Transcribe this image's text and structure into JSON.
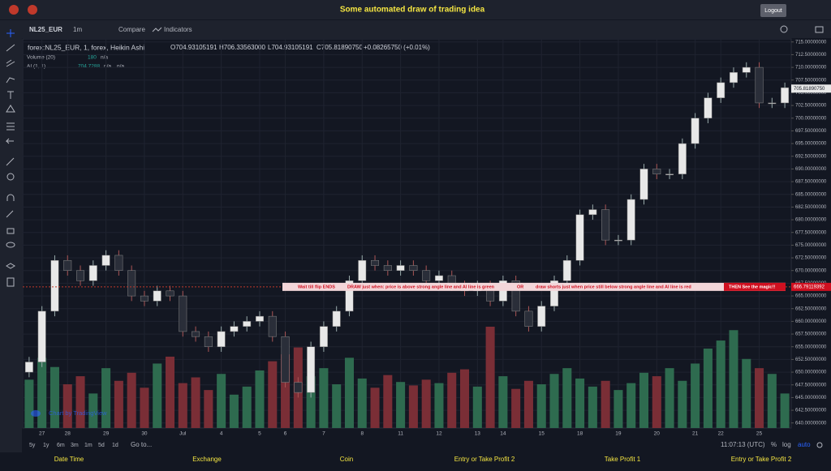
{
  "header": {
    "title": "Some automated draw of trading idea",
    "logout": "Logout"
  },
  "toolbar": {
    "symbol": "NL25_EUR",
    "interval": "1m",
    "compare": "Compare",
    "indicators": "Indicators"
  },
  "legend": {
    "main": "forex:NL25_EUR, 1, forex, Heikin Ashi",
    "open": "O704.93105191",
    "high": "H706.33563000",
    "low": "L704.93105191",
    "close": "C705.81890750",
    "change": "+0.08265750 (+0.01%)",
    "volume_name": "Volume (20)",
    "volume_value": "180",
    "volume_na": "n/a",
    "ai_name": "AI (1, 1)",
    "ai_value": "704.7288",
    "ai_na1": "n/a",
    "ai_na2": "n/a"
  },
  "chart_data": {
    "type": "candlestick",
    "categories": [
      null,
      "27",
      null,
      "28",
      null,
      null,
      "29",
      null,
      null,
      "30",
      null,
      null,
      "Jul",
      null,
      null,
      "4",
      null,
      null,
      "5",
      null,
      "6",
      null,
      null,
      "7",
      null,
      null,
      "8",
      null,
      null,
      "11",
      null,
      null,
      "12",
      null,
      null,
      "13",
      null,
      "14",
      null,
      null,
      "15",
      null,
      null,
      "18",
      null,
      null,
      "19",
      null,
      null,
      "20",
      null,
      null,
      "21",
      null,
      "22",
      null,
      null,
      "25",
      null,
      null
    ],
    "open": [
      650,
      652,
      662,
      672,
      670,
      668,
      671,
      673,
      670,
      665,
      664,
      666,
      665,
      658,
      657,
      655,
      658,
      659,
      660,
      661,
      657,
      648,
      646,
      655,
      659,
      662,
      668,
      672,
      671,
      670,
      671,
      670,
      668,
      669,
      667,
      666,
      667,
      664,
      668,
      662,
      659,
      663,
      668,
      672,
      681,
      682,
      676,
      676,
      684,
      690,
      689,
      689,
      695,
      700,
      704,
      707,
      709,
      710,
      703,
      703
    ],
    "high": [
      653,
      663,
      673,
      673,
      671,
      672,
      674,
      674,
      671,
      666,
      667,
      667,
      666,
      659,
      658,
      659,
      660,
      661,
      662,
      662,
      658,
      649,
      656,
      660,
      663,
      669,
      673,
      673,
      672,
      672,
      672,
      671,
      670,
      670,
      668,
      668,
      668,
      669,
      669,
      663,
      664,
      669,
      673,
      682,
      683,
      683,
      677,
      685,
      691,
      691,
      690,
      696,
      701,
      705,
      708,
      710,
      711,
      711,
      704,
      707
    ],
    "low": [
      649,
      651,
      661,
      669,
      667,
      667,
      670,
      669,
      664,
      663,
      663,
      664,
      657,
      656,
      654,
      654,
      657,
      658,
      659,
      656,
      647,
      645,
      645,
      654,
      658,
      661,
      667,
      670,
      669,
      669,
      669,
      667,
      667,
      666,
      665,
      665,
      663,
      663,
      661,
      658,
      658,
      662,
      667,
      671,
      680,
      675,
      675,
      675,
      683,
      688,
      688,
      688,
      694,
      699,
      703,
      706,
      708,
      702,
      702,
      702
    ],
    "close": [
      652,
      662,
      672,
      670,
      668,
      671,
      673,
      670,
      665,
      664,
      666,
      665,
      658,
      657,
      655,
      658,
      659,
      660,
      661,
      657,
      648,
      646,
      655,
      659,
      662,
      668,
      672,
      671,
      670,
      671,
      670,
      668,
      669,
      667,
      666,
      667,
      664,
      668,
      662,
      659,
      663,
      668,
      672,
      681,
      682,
      676,
      676,
      684,
      690,
      689,
      689,
      695,
      700,
      704,
      707,
      709,
      710,
      703,
      703,
      706
    ],
    "volume": [
      420,
      610,
      530,
      380,
      450,
      300,
      520,
      410,
      480,
      350,
      560,
      620,
      390,
      440,
      330,
      470,
      290,
      360,
      500,
      580,
      640,
      700,
      450,
      520,
      380,
      610,
      430,
      350,
      460,
      400,
      370,
      420,
      390,
      480,
      510,
      360,
      880,
      450,
      340,
      410,
      380,
      470,
      520,
      430,
      360,
      410,
      330,
      390,
      480,
      450,
      520,
      410,
      560,
      690,
      760,
      850,
      600,
      520,
      470,
      300
    ],
    "up_color": "#e8e8e8",
    "down_color": "#2a2e39",
    "volume_up_color": "#2e6b4f",
    "volume_down_color": "#7a2e36",
    "ylim": [
      639,
      715.6
    ],
    "yticks": [
      {
        "value": 715,
        "label": "715.00000000"
      },
      {
        "value": 712.5,
        "label": "712.50000000"
      },
      {
        "value": 710,
        "label": "710.00000000"
      },
      {
        "value": 707.5,
        "label": "707.50000000"
      },
      {
        "value": 705,
        "label": "705.00000000"
      },
      {
        "value": 702.5,
        "label": "702.50000000"
      },
      {
        "value": 700,
        "label": "700.00000000"
      },
      {
        "value": 697.5,
        "label": "697.50000000"
      },
      {
        "value": 695,
        "label": "695.00000000"
      },
      {
        "value": 692.5,
        "label": "692.50000000"
      },
      {
        "value": 690,
        "label": "690.00000000"
      },
      {
        "value": 687.5,
        "label": "687.50000000"
      },
      {
        "value": 685,
        "label": "685.00000000"
      },
      {
        "value": 682.5,
        "label": "682.50000000"
      },
      {
        "value": 680,
        "label": "680.00000000"
      },
      {
        "value": 677.5,
        "label": "677.50000000"
      },
      {
        "value": 675,
        "label": "675.00000000"
      },
      {
        "value": 672.5,
        "label": "672.50000000"
      },
      {
        "value": 670,
        "label": "670.00000000"
      },
      {
        "value": 667.5,
        "label": "667.50000000"
      },
      {
        "value": 665,
        "label": "665.00000000"
      },
      {
        "value": 662.5,
        "label": "662.50000000"
      },
      {
        "value": 660,
        "label": "660.00000000"
      },
      {
        "value": 657.5,
        "label": "657.50000000"
      },
      {
        "value": 655,
        "label": "655.00000000"
      },
      {
        "value": 652.5,
        "label": "652.50000000"
      },
      {
        "value": 650,
        "label": "650.00000000"
      },
      {
        "value": 647.5,
        "label": "647.50000000"
      },
      {
        "value": 645,
        "label": "645.00000000"
      },
      {
        "value": 642.5,
        "label": "642.50000000"
      },
      {
        "value": 640,
        "label": "640.00000000"
      }
    ],
    "current_price": {
      "value": 705.8189075,
      "label": "705.81890750"
    },
    "level": 666.79119392,
    "banner": [
      "Wait till flip ENDS",
      "DRAW just when:  price is above strong angle line and AI line is green",
      "OR",
      "draw shorts just when price still below strong angle line and AI line is red",
      "THEN See the magic!!"
    ],
    "watermark": "Chart by TradingView",
    "grid": true
  },
  "bottom": {
    "ranges": [
      "5y",
      "1y",
      "6m",
      "3m",
      "1m",
      "5d",
      "1d"
    ],
    "goto": "Go to...",
    "time": "11:07:13 (UTC)",
    "percent": "%",
    "log": "log",
    "auto": "auto"
  },
  "footer": [
    "Date Time",
    "Exchange",
    "Coin",
    "Entry or Take Profit 2",
    "Take Profit 1",
    "Entry or Take Profit 2"
  ]
}
